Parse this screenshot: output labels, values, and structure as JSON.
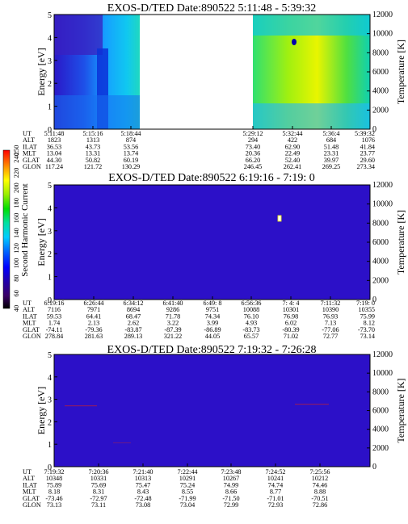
{
  "chart_data": {
    "type": "heatmap",
    "colorbar": {
      "label": "Second Harmonic Current",
      "ticks": [
        "40",
        "60",
        "80",
        "100",
        "120",
        "140",
        "160",
        "180",
        "200",
        "220",
        "240",
        "250"
      ],
      "range": [
        40,
        250
      ]
    },
    "panels": [
      {
        "title": "EXOS-D/TED   Date:890522   5:11:48 - 5:39:32",
        "ylabel": "Energy [eV]",
        "y2label": "Temperature [K]",
        "ylim": [
          0,
          5
        ],
        "yticks": [
          "0",
          "1",
          "2",
          "3",
          "4",
          "5"
        ],
        "y2lim": [
          0,
          12000
        ],
        "y2ticks": [
          "0",
          "2000",
          "4000",
          "6000",
          "8000",
          "10000",
          "12000"
        ],
        "data_gap": [
          "5:18:44",
          "5:29:12"
        ],
        "ephemeris": {
          "labels": [
            "UT",
            "ALT",
            "ILAT",
            "MLT",
            "GLAT",
            "GLON"
          ],
          "columns": [
            [
              "5:11:48",
              "1823",
              "36.53",
              "13.04",
              "44.30",
              "117.24"
            ],
            [
              "5:15:16",
              "1313",
              "43.73",
              "13.31",
              "50.82",
              "121.72"
            ],
            [
              "5:18:44",
              "874",
              "53.56",
              "13.74",
              "60.19",
              "130.29"
            ],
            [
              "5:29:12",
              "294",
              "73.40",
              "20.36",
              "66.20",
              "246.45"
            ],
            [
              "5:32:44",
              "422",
              "62.90",
              "22.49",
              "52.40",
              "262.41"
            ],
            [
              "5:36:4",
              "684",
              "51.48",
              "23.31",
              "39.97",
              "269.25"
            ],
            [
              "5:39:32",
              "1076",
              "41.84",
              "23.77",
              "29.60",
              "273.34"
            ]
          ]
        }
      },
      {
        "title": "EXOS-D/TED   Date:890522   6:19:16 - 7:19: 0",
        "ylabel": "Energy [eV]",
        "y2label": "Temperature [K]",
        "ylim": [
          0,
          5
        ],
        "yticks": [
          "0",
          "1",
          "2",
          "3",
          "4",
          "5"
        ],
        "y2lim": [
          0,
          12000
        ],
        "y2ticks": [
          "0",
          "2000",
          "4000",
          "6000",
          "8000",
          "10000",
          "12000"
        ],
        "ephemeris": {
          "labels": [
            "UT",
            "ALT",
            "ILAT",
            "MLT",
            "GLAT",
            "GLON"
          ],
          "columns": [
            [
              "6:19:16",
              "7116",
              "59.53",
              "1.74",
              "-74.11",
              "278.84"
            ],
            [
              "6:26:44",
              "7971",
              "64.41",
              "2.13",
              "-79.36",
              "281.63"
            ],
            [
              "6:34:12",
              "8694",
              "68.47",
              "2.62",
              "-83.87",
              "289.13"
            ],
            [
              "6:41:40",
              "9286",
              "71.78",
              "3.22",
              "-87.39",
              "321.22"
            ],
            [
              "6:49: 8",
              "9751",
              "74.34",
              "3.99",
              "-86.89",
              "44.05"
            ],
            [
              "6:56:36",
              "10088",
              "76.10",
              "4.93",
              "-83.73",
              "65.57"
            ],
            [
              "7: 4: 4",
              "10301",
              "76.98",
              "6.02",
              "-80.39",
              "71.02"
            ],
            [
              "7:11:32",
              "10390",
              "76.93",
              "7.13",
              "-77.06",
              "72.77"
            ],
            [
              "7:19: 0",
              "10355",
              "75.99",
              "8.12",
              "-73.70",
              "73.14"
            ]
          ]
        }
      },
      {
        "title": "EXOS-D/TED   Date:890522   7:19:32 - 7:26:28",
        "ylabel": "Energy [eV]",
        "y2label": "Temperature [K]",
        "ylim": [
          0,
          5
        ],
        "yticks": [
          "0",
          "1",
          "2",
          "3",
          "4",
          "5"
        ],
        "y2lim": [
          0,
          12000
        ],
        "y2ticks": [
          "0",
          "2000",
          "4000",
          "6000",
          "8000",
          "10000",
          "12000"
        ],
        "ephemeris": {
          "labels": [
            "UT",
            "ALT",
            "ILAT",
            "MLT",
            "GLAT",
            "GLON"
          ],
          "columns": [
            [
              "7:19:32",
              "10348",
              "75.89",
              "8.18",
              "-73.46",
              "73.13"
            ],
            [
              "7:20:36",
              "10331",
              "75.69",
              "8.31",
              "-72.97",
              "73.11"
            ],
            [
              "7:21:40",
              "10313",
              "75.47",
              "8.43",
              "-72.48",
              "73.08"
            ],
            [
              "7:22:44",
              "10291",
              "75.24",
              "8.55",
              "-71.99",
              "73.04"
            ],
            [
              "7:23:48",
              "10267",
              "74.99",
              "8.66",
              "-71.50",
              "72.99"
            ],
            [
              "7:24:52",
              "10241",
              "74.74",
              "8.77",
              "-71.01",
              "72.93"
            ],
            [
              "7:25:56",
              "10212",
              "74.46",
              "8.88",
              "-70.51",
              "72.86"
            ]
          ]
        }
      }
    ]
  }
}
